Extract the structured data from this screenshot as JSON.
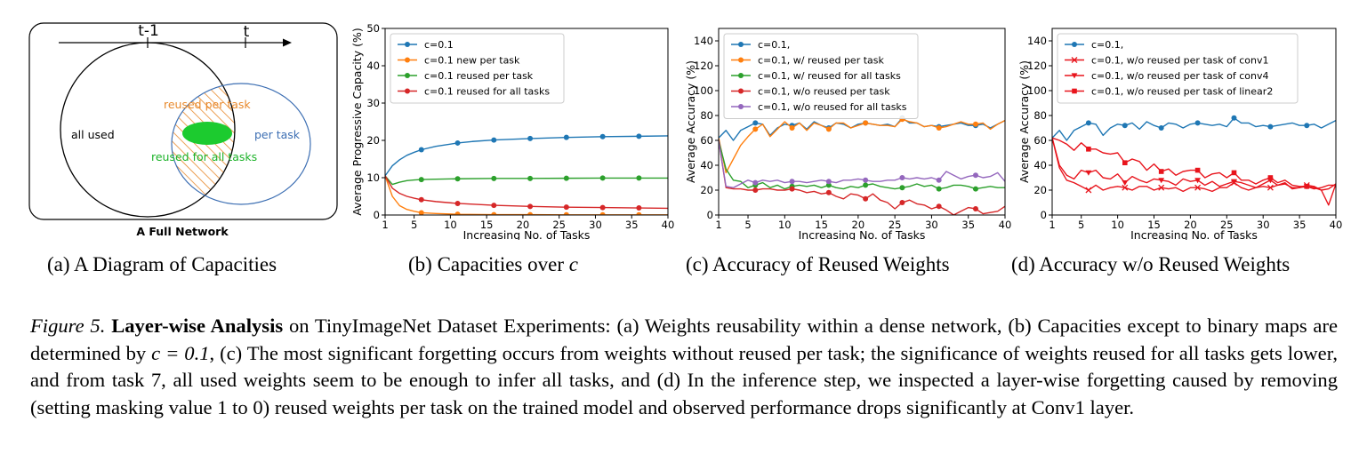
{
  "diagram": {
    "timeline_labels": [
      "t-1",
      "t"
    ],
    "all_used": "all used",
    "per_task": "per task",
    "reused_per_task": "reused per task",
    "reused_for_all": "reused for all tasks",
    "bottom_title": "A Full Network",
    "colors": {
      "orange": "#e8892c",
      "green": "#1db32a",
      "blue": "#3d6fb3"
    }
  },
  "subcaptions": {
    "a": "(a) A Diagram of Capacities",
    "b": "(b) Capacities over ",
    "b_var": "c",
    "c": "(c) Accuracy of Reused Weights",
    "d": "(d) Accuracy w/o Reused Weights"
  },
  "caption": {
    "label": "Figure 5.",
    "title": "Layer-wise Analysis",
    "text1": " on TinyImageNet Dataset Experiments: (a) Weights reusability within a dense network, (b) Capacities except to binary maps are determined by ",
    "math": "c = 0.1",
    "text2": ", (c) The most significant forgetting occurs from weights without reused per task; the significance of weights reused for all tasks gets lower, and from task 7, all used weights seem to be enough to infer all tasks, and (d) In the inference step, we inspected a layer-wise forgetting caused by removing (setting masking value 1 to 0) reused weights per task on the trained model and observed performance drops significantly at Conv1 layer."
  },
  "chart_data": [
    {
      "id": "b",
      "type": "line",
      "xlabel": "Increasing No. of Tasks",
      "ylabel": "Average Progressive Capacity (%)",
      "xlim": [
        1,
        40
      ],
      "ylim": [
        0,
        50
      ],
      "xticks": [
        1,
        5,
        10,
        15,
        20,
        25,
        30,
        35,
        40
      ],
      "yticks": [
        0,
        10,
        20,
        30,
        40,
        50
      ],
      "legend_loc": "top-left",
      "series": [
        {
          "name": "c=0.1",
          "color": "#1f77b4",
          "marker": "circle",
          "x": [
            1,
            2,
            3,
            4,
            5,
            6,
            8,
            11,
            13,
            16,
            21,
            26,
            31,
            36,
            40
          ],
          "y": [
            10.5,
            13.2,
            14.8,
            16.0,
            16.8,
            17.5,
            18.4,
            19.3,
            19.7,
            20.1,
            20.5,
            20.8,
            21.0,
            21.1,
            21.2
          ]
        },
        {
          "name": "c=0.1 new per task",
          "color": "#ff7f0e",
          "marker": "circle",
          "x": [
            1,
            2,
            3,
            4,
            5,
            6,
            8,
            11,
            16,
            21,
            26,
            31,
            36,
            40
          ],
          "y": [
            10.5,
            5.0,
            2.5,
            1.5,
            1.0,
            0.6,
            0.4,
            0.2,
            0.1,
            0.1,
            0.05,
            0.05,
            0.05,
            0.05
          ]
        },
        {
          "name": "c=0.1 reused per task",
          "color": "#2ca02c",
          "marker": "circle",
          "x": [
            1,
            2,
            3,
            4,
            5,
            6,
            8,
            11,
            16,
            21,
            26,
            31,
            36,
            40
          ],
          "y": [
            10.5,
            8.2,
            8.8,
            9.2,
            9.4,
            9.5,
            9.6,
            9.7,
            9.8,
            9.8,
            9.85,
            9.9,
            9.9,
            9.9
          ]
        },
        {
          "name": "c=0.1 reused for all tasks",
          "color": "#d62728",
          "marker": "circle",
          "x": [
            1,
            2,
            3,
            4,
            5,
            6,
            8,
            11,
            16,
            21,
            26,
            31,
            36,
            40
          ],
          "y": [
            10.5,
            7.2,
            5.8,
            5.0,
            4.5,
            4.1,
            3.6,
            3.1,
            2.6,
            2.3,
            2.1,
            2.0,
            1.9,
            1.8
          ]
        }
      ]
    },
    {
      "id": "c",
      "type": "line",
      "xlabel": "Increasing No. of Tasks",
      "ylabel": "Average Accuracy (%)",
      "xlim": [
        1,
        40
      ],
      "ylim": [
        0,
        150
      ],
      "xticks": [
        1,
        5,
        10,
        15,
        20,
        25,
        30,
        35,
        40
      ],
      "yticks": [
        0,
        20,
        40,
        60,
        80,
        100,
        120,
        140
      ],
      "legend_loc": "top-left",
      "series": [
        {
          "name": "c=0.1,",
          "color": "#1f77b4",
          "marker": "circle",
          "y": [
            62,
            68,
            60,
            68,
            71,
            74,
            73,
            64,
            70,
            73,
            72,
            74,
            69,
            75,
            72,
            70,
            74,
            73,
            70,
            73,
            74,
            73,
            72,
            73,
            71,
            78,
            74,
            74,
            71,
            72,
            71,
            72,
            73,
            74,
            72,
            72,
            73,
            70,
            73,
            76
          ]
        },
        {
          "name": "c=0.1, w/  reused per task",
          "color": "#ff7f0e",
          "marker": "circle",
          "y": [
            62,
            34,
            45,
            56,
            63,
            69,
            73,
            63,
            69,
            75,
            70,
            74,
            68,
            74,
            72,
            69,
            74,
            74,
            70,
            72,
            74,
            73,
            72,
            72,
            71,
            77,
            75,
            74,
            71,
            72,
            70,
            71,
            73,
            75,
            73,
            73,
            74,
            69,
            73,
            76
          ]
        },
        {
          "name": "c=0.1, w/  reused for all tasks",
          "color": "#2ca02c",
          "marker": "circle",
          "y": [
            60,
            37,
            28,
            27,
            22,
            24,
            26,
            22,
            24,
            21,
            23,
            24,
            23,
            24,
            22,
            24,
            22,
            21,
            23,
            22,
            24,
            25,
            23,
            22,
            21,
            22,
            23,
            25,
            23,
            24,
            21,
            22,
            24,
            24,
            23,
            21,
            22,
            23,
            22,
            22
          ]
        },
        {
          "name": "c=0.1, w/o reused per task",
          "color": "#d62728",
          "marker": "circle",
          "y": [
            60,
            22,
            21,
            21,
            20,
            20,
            21,
            21,
            20,
            20,
            21,
            20,
            18,
            19,
            17,
            18,
            15,
            13,
            17,
            16,
            13,
            17,
            12,
            10,
            5,
            10,
            12,
            9,
            8,
            5,
            7,
            4,
            0,
            3,
            6,
            5,
            1,
            2,
            3,
            7
          ]
        },
        {
          "name": "c=0.1, w/o reused for all tasks",
          "color": "#9467bd",
          "marker": "circle",
          "y": [
            60,
            23,
            22,
            25,
            28,
            26,
            28,
            27,
            28,
            26,
            27,
            27,
            26,
            27,
            28,
            27,
            26,
            28,
            28,
            29,
            28,
            27,
            27,
            28,
            28,
            30,
            29,
            30,
            29,
            30,
            28,
            35,
            32,
            29,
            31,
            32,
            30,
            31,
            34,
            27
          ]
        }
      ]
    },
    {
      "id": "d",
      "type": "line",
      "xlabel": "Increasing No. of Tasks",
      "ylabel": "Average Accuracy (%)",
      "xlim": [
        1,
        40
      ],
      "ylim": [
        0,
        150
      ],
      "xticks": [
        1,
        5,
        10,
        15,
        20,
        25,
        30,
        35,
        40
      ],
      "yticks": [
        0,
        20,
        40,
        60,
        80,
        100,
        120,
        140
      ],
      "legend_loc": "top-left",
      "series": [
        {
          "name": "c=0.1,",
          "color": "#1f77b4",
          "marker": "circle",
          "y": [
            62,
            68,
            60,
            68,
            71,
            74,
            73,
            64,
            70,
            73,
            72,
            74,
            69,
            75,
            72,
            70,
            74,
            73,
            70,
            73,
            74,
            73,
            72,
            73,
            71,
            78,
            74,
            74,
            71,
            72,
            71,
            72,
            73,
            74,
            72,
            72,
            73,
            70,
            73,
            76
          ]
        },
        {
          "name": "c=0.1, w/o reused per task of conv1",
          "color": "#e8141c",
          "marker": "x",
          "y": [
            62,
            38,
            28,
            26,
            23,
            20,
            24,
            20,
            22,
            23,
            22,
            20,
            23,
            23,
            20,
            22,
            21,
            22,
            19,
            22,
            22,
            21,
            19,
            22,
            22,
            26,
            22,
            20,
            22,
            23,
            22,
            24,
            25,
            22,
            22,
            24,
            23,
            20,
            21,
            25
          ]
        },
        {
          "name": "c=0.1, w/o reused per task of conv4",
          "color": "#e8141c",
          "marker": "triangle",
          "y": [
            62,
            40,
            32,
            29,
            36,
            34,
            36,
            30,
            29,
            33,
            26,
            31,
            28,
            26,
            29,
            28,
            27,
            24,
            29,
            27,
            28,
            24,
            27,
            23,
            25,
            27,
            26,
            24,
            22,
            25,
            28,
            24,
            26,
            21,
            22,
            23,
            21,
            22,
            24,
            24
          ]
        },
        {
          "name": "c=0.1, w/o reused per task of linear2",
          "color": "#e8141c",
          "marker": "square",
          "y": [
            62,
            60,
            57,
            52,
            58,
            53,
            53,
            50,
            49,
            50,
            42,
            45,
            43,
            36,
            41,
            35,
            37,
            32,
            35,
            36,
            36,
            30,
            33,
            34,
            30,
            34,
            28,
            28,
            25,
            28,
            30,
            26,
            28,
            24,
            23,
            23,
            22,
            20,
            8,
            25
          ]
        }
      ]
    }
  ]
}
